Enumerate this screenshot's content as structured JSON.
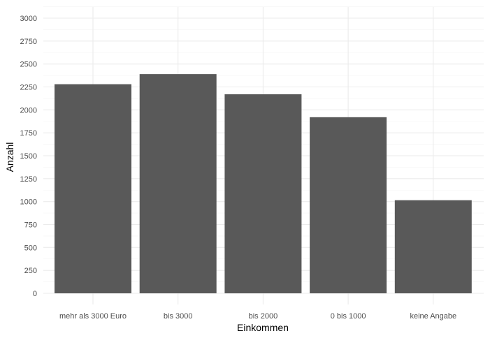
{
  "chart_data": {
    "type": "bar",
    "title": "",
    "xlabel": "Einkommen",
    "ylabel": "Anzahl",
    "categories": [
      "mehr als 3000 Euro",
      "bis 3000",
      "bis 2000",
      "0 bis 1000",
      "keine Angabe"
    ],
    "values": [
      2280,
      2390,
      2170,
      1920,
      1015
    ],
    "ylim": [
      0,
      3000
    ],
    "yticks": [
      0,
      250,
      500,
      750,
      1000,
      1250,
      1500,
      1750,
      2000,
      2250,
      2500,
      2750,
      3000
    ],
    "grid": true,
    "legend": "none",
    "colors": {
      "bar": "#595959",
      "grid_major": "#ebebeb",
      "grid_minor": "#f5f5f5",
      "background": "#ffffff"
    }
  }
}
